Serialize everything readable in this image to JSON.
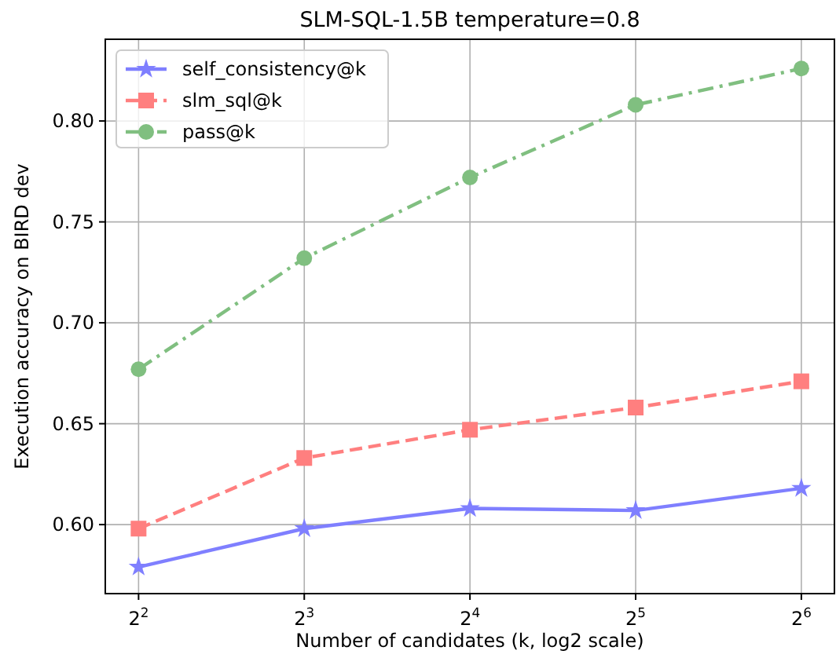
{
  "chart_data": {
    "type": "line",
    "title": "SLM-SQL-1.5B temperature=0.8",
    "xlabel": "Number of candidates (k, log2 scale)",
    "ylabel": "Execution accuracy on BIRD dev",
    "x": [
      4,
      8,
      16,
      32,
      64
    ],
    "log": "x",
    "xlim": [
      3.48,
      73.5
    ],
    "xticks": [
      {
        "value": 4,
        "label": "2$^{2}$"
      },
      {
        "value": 8,
        "label": "2$^{3}$"
      },
      {
        "value": 16,
        "label": "2$^{4}$"
      },
      {
        "value": 32,
        "label": "2$^{5}$"
      },
      {
        "value": 64,
        "label": "2$^{6}$"
      }
    ],
    "ylim": [
      0.5658,
      0.8405
    ],
    "yticks": [
      {
        "value": 0.6,
        "label": "0.60"
      },
      {
        "value": 0.65,
        "label": "0.65"
      },
      {
        "value": 0.7,
        "label": "0.70"
      },
      {
        "value": 0.75,
        "label": "0.75"
      },
      {
        "value": 0.8,
        "label": "0.80"
      }
    ],
    "grid": true,
    "legend": "top left",
    "series": [
      {
        "name": "self_consistency@k",
        "color": "#7f7fff",
        "marker": "star",
        "line_style": "solid",
        "values": [
          0.579,
          0.598,
          0.608,
          0.607,
          0.618
        ]
      },
      {
        "name": "slm_sql@k",
        "color": "#ff7f7f",
        "marker": "square",
        "line_style": "dashed",
        "values": [
          0.598,
          0.633,
          0.647,
          0.658,
          0.671
        ]
      },
      {
        "name": "pass@k",
        "color": "#80bf80",
        "marker": "circle",
        "line_style": "dashdot",
        "values": [
          0.677,
          0.732,
          0.772,
          0.808,
          0.826
        ]
      }
    ]
  }
}
